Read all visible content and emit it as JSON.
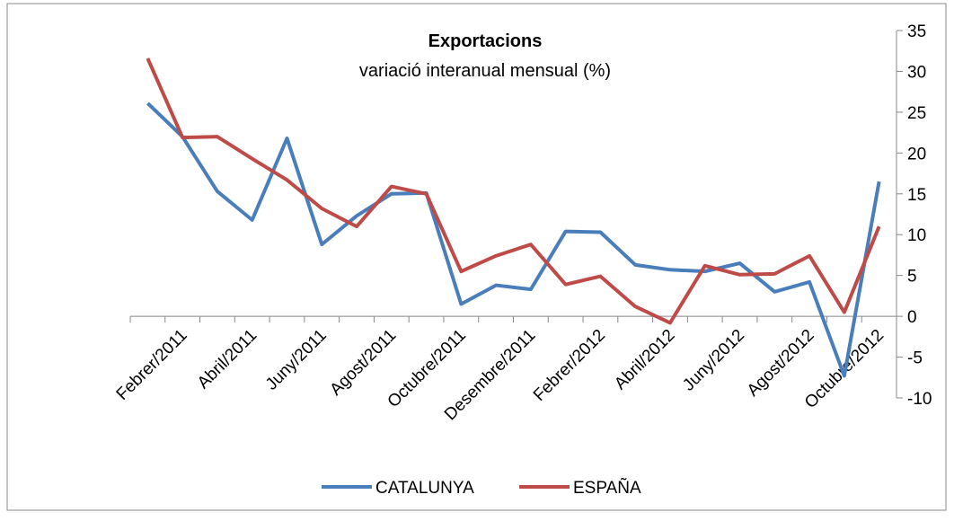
{
  "chart_data": {
    "type": "line",
    "title": "Exportacions",
    "subtitle": "variació interanual mensual (%)",
    "categories": [
      null,
      "Febrer/2011",
      null,
      "Abril/2011",
      null,
      "Juny/2011",
      null,
      "Agost/2011",
      null,
      "Octubre/2011",
      null,
      "Desembre/2011",
      null,
      "Febrer/2012",
      null,
      "Abril/2012",
      null,
      "Juny/2012",
      null,
      "Agost/2012",
      null,
      "Octubre/2012"
    ],
    "series": [
      {
        "name": "CATALUNYA",
        "color": "#4a7ebb",
        "values": [
          26.1,
          22,
          15.3,
          11.8,
          21.8,
          8.8,
          12.3,
          15,
          15.1,
          1.5,
          3.8,
          3.3,
          10.4,
          10.3,
          6.3,
          5.7,
          5.5,
          6.5,
          3,
          4.2,
          -7.3,
          16.5
        ]
      },
      {
        "name": "ESPAÑA",
        "color": "#be4b48",
        "values": [
          31.6,
          21.9,
          22,
          19.3,
          16.7,
          13.2,
          11,
          15.9,
          15,
          5.5,
          7.4,
          8.8,
          3.9,
          4.9,
          1.2,
          -0.8,
          6.2,
          5.1,
          5.2,
          7.4,
          0.5,
          11
        ]
      }
    ],
    "ylim": [
      -10,
      35
    ],
    "yticks": [
      -10,
      -5,
      0,
      5,
      10,
      15,
      20,
      25,
      30,
      35
    ],
    "y_axis_side": "right",
    "legend": "bottom"
  }
}
